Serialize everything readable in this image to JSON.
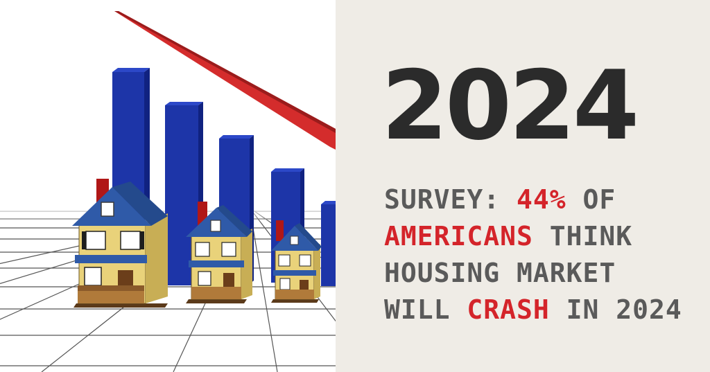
{
  "year": "2024",
  "headline": {
    "line1": [
      "SURVEY: ",
      "44%",
      " OF"
    ],
    "line2": [
      "AMERICANS",
      " THINK"
    ],
    "line3": "HOUSING MARKET",
    "line4": [
      "WILL ",
      "CRASH",
      " IN 2024"
    ]
  },
  "colors": {
    "accent": "#d4242a",
    "headline_text": "#5a5a5a",
    "year_text": "#2b2b2b",
    "panel_background": "#efece6",
    "bar_blue": "#1d35a8",
    "bar_red": "#b01717",
    "trend_arrow": "#d42c2c"
  },
  "icons": [
    "declining-bar-chart-illustration",
    "house-icon",
    "downward-trend-arrow"
  ]
}
